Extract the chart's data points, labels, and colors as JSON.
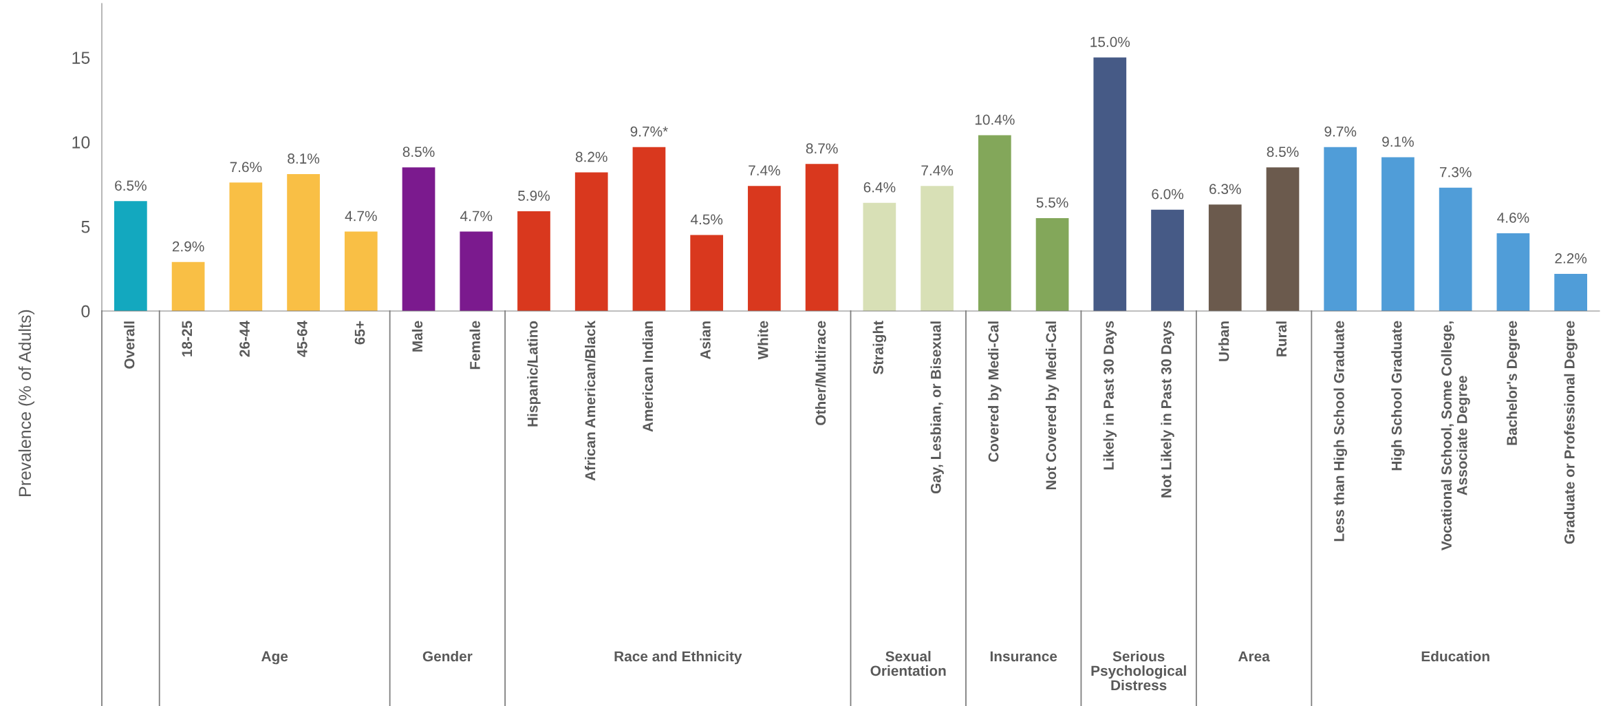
{
  "chart_data": {
    "type": "bar",
    "ylabel": "Prevalence (% of Adults)",
    "categories": [
      "Overall",
      "18-25",
      "26-44",
      "45-64",
      "65+",
      "Male",
      "Female",
      "Hispanic/Latino",
      "African American/Black",
      "American Indian",
      "Asian",
      "White",
      "Other/Multirace",
      "Straight",
      "Gay, Lesbian, or Bisexual",
      "Covered by Medi-Cal",
      "Not Covered by Medi-Cal",
      "Likely in Past 30 Days",
      "Not Likely in Past 30 Days",
      "Urban",
      "Rural",
      "Less than High School Graduate",
      "High School Graduate",
      "Vocational School, Some College,\nAssociate Degree",
      "Bachelor's Degree",
      "Graduate or Professional Degree"
    ],
    "values": [
      6.5,
      2.9,
      7.6,
      8.1,
      4.7,
      8.5,
      4.7,
      5.9,
      8.2,
      9.7,
      4.5,
      7.4,
      8.7,
      6.4,
      7.4,
      10.4,
      5.5,
      15.0,
      6.0,
      6.3,
      8.5,
      9.7,
      9.1,
      7.3,
      4.6,
      2.2
    ],
    "value_labels": [
      "6.5%",
      "2.9%",
      "7.6%",
      "8.1%",
      "4.7%",
      "8.5%",
      "4.7%",
      "5.9%",
      "8.2%",
      "9.7%*",
      "4.5%",
      "7.4%",
      "8.7%",
      "6.4%",
      "7.4%",
      "10.4%",
      "5.5%",
      "15.0%",
      "6.0%",
      "6.3%",
      "8.5%",
      "9.7%",
      "9.1%",
      "7.3%",
      "4.6%",
      "2.2%"
    ],
    "colors": [
      "#13a8bf",
      "#f9bf45",
      "#f9bf45",
      "#f9bf45",
      "#f9bf45",
      "#7b1a8e",
      "#7b1a8e",
      "#d9381e",
      "#d9381e",
      "#d9381e",
      "#d9381e",
      "#d9381e",
      "#d9381e",
      "#d8e0b6",
      "#d8e0b6",
      "#83a75a",
      "#83a75a",
      "#465a86",
      "#465a86",
      "#6b5a4d",
      "#6b5a4d",
      "#509dd8",
      "#509dd8",
      "#509dd8",
      "#509dd8",
      "#509dd8"
    ],
    "ylim": [
      0,
      18.2
    ],
    "yticks": [
      0,
      5,
      10,
      15
    ],
    "grid": false,
    "legend": false,
    "annotations": [
      "Age",
      "Gender",
      "Race and Ethnicity",
      "Sexual\nOrientation",
      "Insurance",
      "Serious\nPsychological\nDistress",
      "Area",
      "Education"
    ]
  }
}
